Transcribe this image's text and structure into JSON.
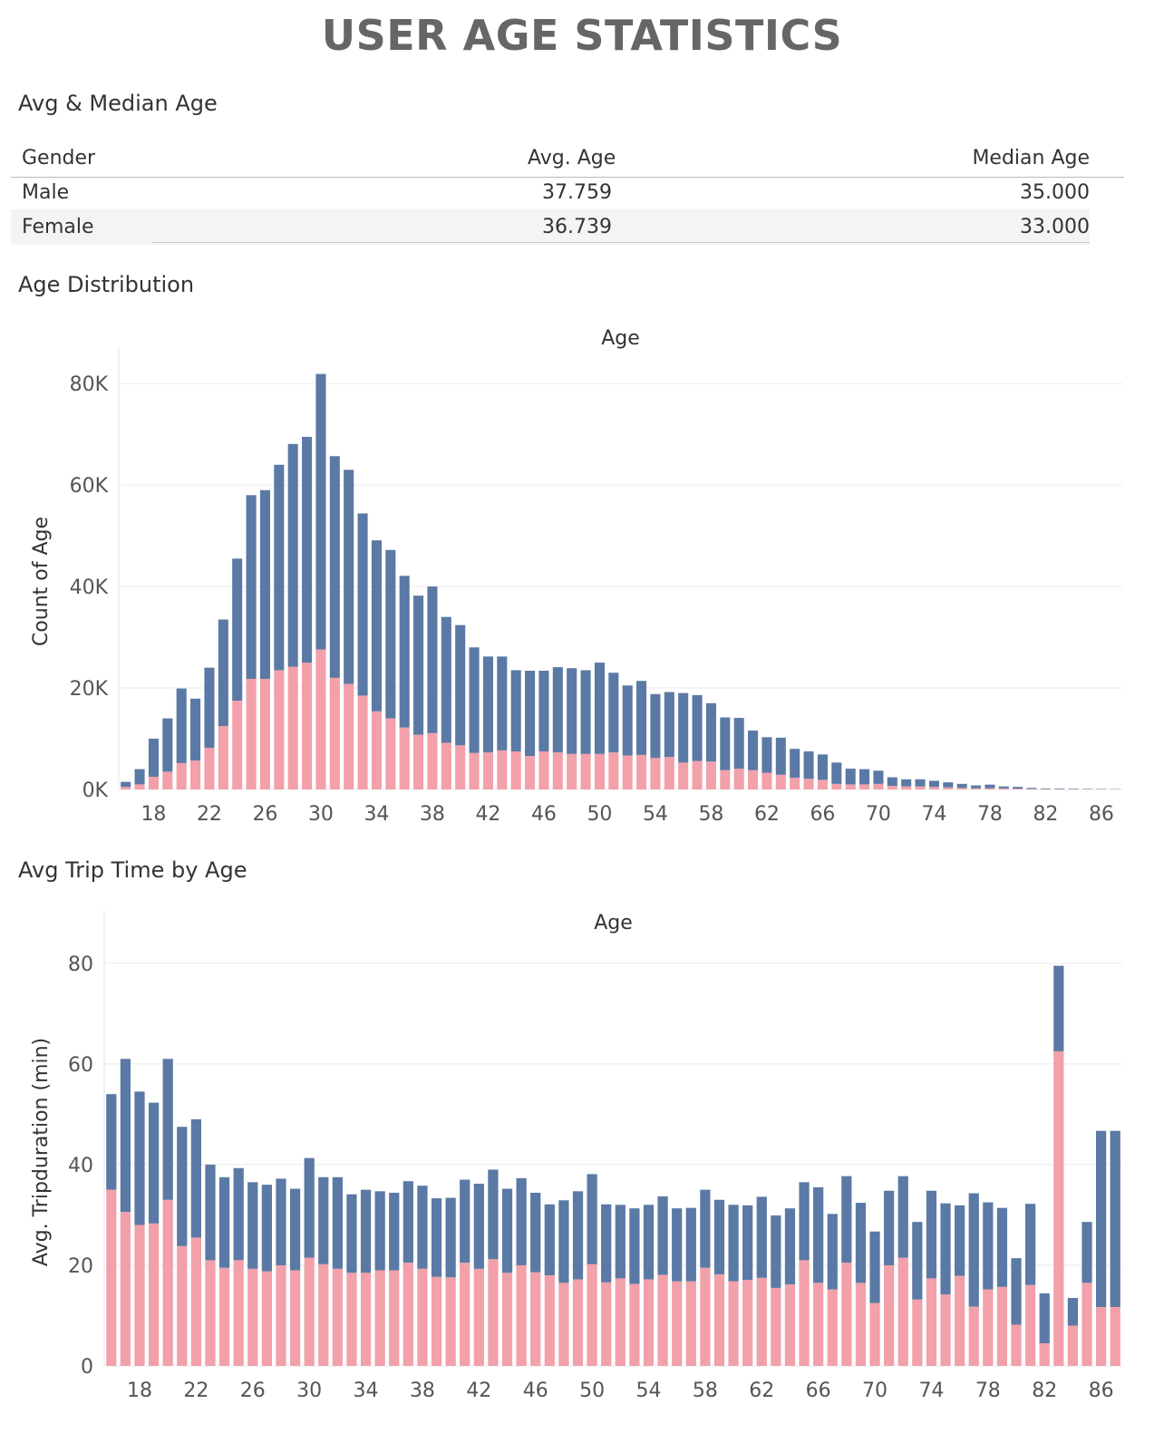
{
  "page_title": "USER AGE STATISTICS",
  "sections": {
    "table_title": "Avg & Median Age",
    "dist_title": "Age Distribution",
    "trip_title": "Avg Trip Time by Age"
  },
  "age_table": {
    "headers": [
      "Gender",
      "Avg. Age",
      "Median Age"
    ],
    "rows": [
      {
        "gender": "Male",
        "avg": "37.759",
        "median": "35.000"
      },
      {
        "gender": "Female",
        "avg": "36.739",
        "median": "33.000"
      }
    ]
  },
  "colors": {
    "male": "#5b79a5",
    "female": "#f2a0aa",
    "grid": "#eaeaea"
  },
  "chart_data": [
    {
      "type": "bar",
      "stacked": true,
      "title": "Age",
      "xlabel": "Age",
      "ylabel": "Count of Age",
      "ylim": [
        0,
        82000
      ],
      "yticks": [
        0,
        20000,
        40000,
        60000,
        80000
      ],
      "ytick_labels": [
        "0K",
        "20K",
        "40K",
        "60K",
        "80K"
      ],
      "x": [
        16,
        17,
        18,
        19,
        20,
        21,
        22,
        23,
        24,
        25,
        26,
        27,
        28,
        29,
        30,
        31,
        32,
        33,
        34,
        35,
        36,
        37,
        38,
        39,
        40,
        41,
        42,
        43,
        44,
        45,
        46,
        47,
        48,
        49,
        50,
        51,
        52,
        53,
        54,
        55,
        56,
        57,
        58,
        59,
        60,
        61,
        62,
        63,
        64,
        65,
        66,
        67,
        68,
        69,
        70,
        71,
        72,
        73,
        74,
        75,
        76,
        77,
        78,
        79,
        80,
        81,
        82,
        83,
        84,
        85,
        86,
        87
      ],
      "xtick_labels": [
        18,
        22,
        26,
        30,
        34,
        38,
        42,
        46,
        50,
        54,
        58,
        62,
        66,
        70,
        74,
        78,
        82,
        86
      ],
      "series": [
        {
          "color_key": "female",
          "values": [
            500,
            1000,
            2500,
            3500,
            5200,
            5700,
            8200,
            12500,
            17500,
            21800,
            21800,
            23500,
            24200,
            25000,
            27600,
            22000,
            20800,
            18500,
            15400,
            14000,
            12200,
            10800,
            11100,
            9200,
            8700,
            7200,
            7300,
            7700,
            7500,
            6600,
            7500,
            7300,
            7000,
            7000,
            7000,
            7300,
            6700,
            6800,
            6200,
            6400,
            5300,
            5600,
            5500,
            3800,
            4100,
            3800,
            3300,
            2900,
            2300,
            2100,
            1900,
            1100,
            1000,
            1000,
            1100,
            700,
            600,
            600,
            500,
            400,
            300,
            250,
            250,
            200,
            150,
            100,
            80,
            70,
            60,
            50,
            40,
            30
          ]
        },
        {
          "color_key": "male",
          "values": [
            1000,
            3000,
            7500,
            10500,
            14700,
            12200,
            15800,
            21000,
            28000,
            36200,
            37200,
            40500,
            43900,
            44500,
            54300,
            43700,
            42200,
            35900,
            33700,
            33200,
            29900,
            27400,
            28900,
            24800,
            23700,
            20800,
            18900,
            18500,
            16000,
            16800,
            15900,
            16800,
            16900,
            16500,
            18000,
            15700,
            13800,
            14600,
            12600,
            12800,
            13700,
            13000,
            11500,
            10400,
            10000,
            7800,
            7000,
            7300,
            5700,
            5400,
            5000,
            4200,
            3100,
            3000,
            2600,
            1700,
            1400,
            1400,
            1200,
            1000,
            800,
            550,
            700,
            400,
            350,
            200,
            120,
            110,
            100,
            80,
            70,
            60
          ]
        }
      ]
    },
    {
      "type": "bar",
      "stacked": true,
      "title": "Age",
      "xlabel": "Age",
      "ylabel": "Avg. Tripduration (min)",
      "ylim": [
        0,
        85
      ],
      "yticks": [
        0,
        20,
        40,
        60,
        80
      ],
      "ytick_labels": [
        "0",
        "20",
        "40",
        "60",
        "80"
      ],
      "x": [
        16,
        17,
        18,
        19,
        20,
        21,
        22,
        23,
        24,
        25,
        26,
        27,
        28,
        29,
        30,
        31,
        32,
        33,
        34,
        35,
        36,
        37,
        38,
        39,
        40,
        41,
        42,
        43,
        44,
        45,
        46,
        47,
        48,
        49,
        50,
        51,
        52,
        53,
        54,
        55,
        56,
        57,
        58,
        59,
        60,
        61,
        62,
        63,
        64,
        65,
        66,
        67,
        68,
        69,
        70,
        71,
        72,
        73,
        74,
        75,
        76,
        77,
        78,
        79,
        80,
        81,
        82,
        83,
        84,
        85,
        86,
        87
      ],
      "xtick_labels": [
        18,
        22,
        26,
        30,
        34,
        38,
        42,
        46,
        50,
        54,
        58,
        62,
        66,
        70,
        74,
        78,
        82,
        86
      ],
      "series": [
        {
          "color_key": "female",
          "values": [
            35,
            30.6,
            28,
            28.3,
            33,
            23.8,
            25.5,
            21,
            19.5,
            21,
            19.3,
            18.8,
            20,
            19,
            21.5,
            20.2,
            19.3,
            18.5,
            18.5,
            19,
            19,
            20.5,
            19.3,
            17.7,
            17.6,
            20.5,
            19.3,
            21.2,
            18.5,
            20,
            18.6,
            18,
            16.5,
            17.2,
            20.2,
            16.6,
            17.4,
            16.3,
            17.2,
            18.1,
            16.8,
            16.8,
            19.5,
            18.2,
            16.8,
            17.1,
            17.5,
            15.5,
            16.2,
            21,
            16.5,
            15.2,
            20.5,
            16.5,
            12.5,
            20,
            21.5,
            13.2,
            17.4,
            14.2,
            17.9,
            11.8,
            15.2,
            15.7,
            8.2,
            16.1,
            4.5,
            62.5,
            8,
            16.5,
            11.7,
            11.7
          ]
        },
        {
          "color_key": "male",
          "values": [
            19,
            30.4,
            26.5,
            24,
            28,
            23.7,
            23.5,
            19,
            18,
            18.3,
            17.2,
            17.2,
            17.2,
            16.2,
            19.8,
            17.3,
            18.2,
            15.6,
            16.5,
            15.7,
            15.4,
            16.2,
            16.5,
            15.6,
            15.8,
            16.5,
            16.9,
            17.8,
            16.7,
            17.3,
            15.8,
            14.1,
            16.4,
            17.5,
            17.9,
            15.5,
            14.6,
            15,
            14.8,
            15.6,
            14.5,
            14.6,
            15.5,
            14.8,
            15.2,
            14.8,
            16.1,
            14.4,
            15.1,
            15.5,
            19,
            15,
            17.2,
            15.9,
            14.2,
            14.8,
            16.2,
            15.4,
            17.4,
            18.1,
            14,
            22.5,
            17.3,
            15.7,
            13.2,
            16.1,
            9.9,
            17,
            5.5,
            12.1,
            35,
            35
          ]
        }
      ]
    }
  ]
}
